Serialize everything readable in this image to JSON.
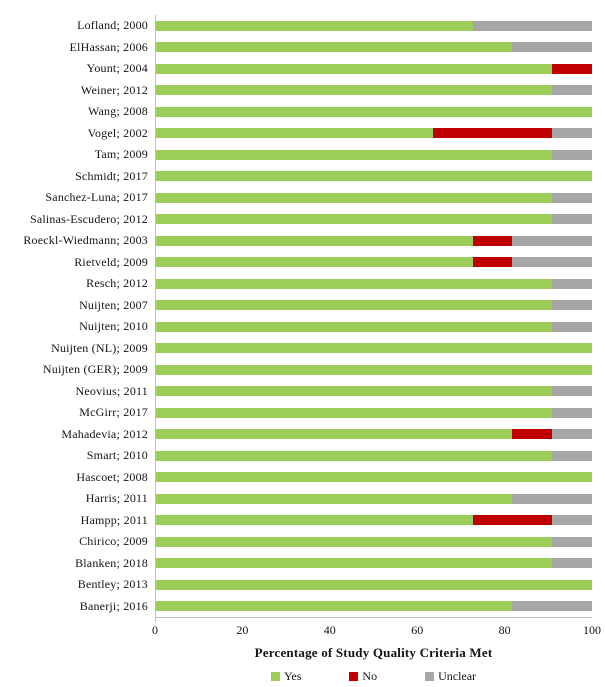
{
  "chart_data": {
    "type": "bar",
    "orientation": "horizontal",
    "stacked": true,
    "title": "",
    "xlabel": "Percentage of Study Quality Criteria Met",
    "ylabel": "",
    "xlim": [
      0,
      100
    ],
    "x_ticks": [
      0,
      20,
      40,
      60,
      80,
      100
    ],
    "grid": false,
    "legend_position": "bottom",
    "axis_color": "#bfbfbf",
    "categories": [
      "Lofland; 2000",
      "ElHassan; 2006",
      "Yount; 2004",
      "Weiner; 2012",
      "Wang; 2008",
      "Vogel; 2002",
      "Tam; 2009",
      "Schmidt; 2017",
      "Sanchez-Luna; 2017",
      "Salinas-Escudero; 2012",
      "Roeckl-Wiedmann; 2003",
      "Rietveld; 2009",
      "Resch; 2012",
      "Nuijten; 2007",
      "Nuijten; 2010",
      "Nuijten (NL); 2009",
      "Nuijten (GER); 2009",
      "Neovius; 2011",
      "McGirr; 2017",
      "Mahadevia; 2012",
      "Smart; 2010",
      "Hascoet; 2008",
      "Harris; 2011",
      "Hampp; 2011",
      "Chirico; 2009",
      "Blanken; 2018",
      "Bentley; 2013",
      "Banerji; 2016"
    ],
    "series": [
      {
        "name": "Yes",
        "color": "#9bcd58",
        "values": [
          72.7,
          81.8,
          90.9,
          90.9,
          100,
          63.6,
          90.9,
          100,
          90.9,
          90.9,
          72.7,
          72.7,
          90.9,
          90.9,
          90.9,
          100,
          100,
          90.9,
          90.9,
          81.8,
          90.9,
          100,
          81.8,
          72.7,
          90.9,
          90.9,
          100,
          81.8
        ]
      },
      {
        "name": "No",
        "color": "#c00000",
        "values": [
          0,
          0,
          9.1,
          0,
          0,
          27.3,
          0,
          0,
          0,
          0,
          9.1,
          9.1,
          0,
          0,
          0,
          0,
          0,
          0,
          0,
          9.1,
          0,
          0,
          0,
          18.2,
          0,
          0,
          0,
          0
        ]
      },
      {
        "name": "Unclear",
        "color": "#a6a6a6",
        "values": [
          27.3,
          18.2,
          0,
          9.1,
          0,
          9.1,
          9.1,
          0,
          9.1,
          9.1,
          18.2,
          18.2,
          9.1,
          9.1,
          9.1,
          0,
          0,
          9.1,
          9.1,
          9.1,
          9.1,
          0,
          18.2,
          9.1,
          9.1,
          9.1,
          0,
          18.2
        ]
      }
    ]
  }
}
